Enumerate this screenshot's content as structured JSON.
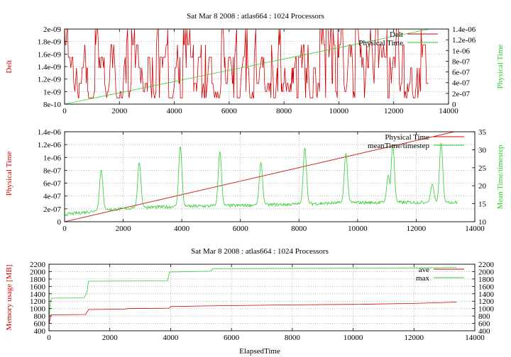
{
  "colors": {
    "red": "#d00000",
    "green": "#33cc33",
    "grid": "#a0a0a0",
    "frame": "#000000"
  },
  "chart_data": [
    {
      "type": "line",
      "title": "Sat Mar 8 2008 : atlas664 : 1024 Processors",
      "xlabel": "",
      "ylabel": "Delt",
      "y2label": "Physical Time",
      "xlim": [
        0,
        14000
      ],
      "ylim": [
        8e-10,
        2e-09
      ],
      "y2lim": [
        0,
        1.4e-06
      ],
      "xticks": [
        "0",
        "2000",
        "4000",
        "6000",
        "8000",
        "10000",
        "12000",
        "14000"
      ],
      "yticks": [
        "8e-10",
        "1e-09",
        "1.2e-09",
        "1.4e-09",
        "1.6e-09",
        "1.8e-09",
        "2e-09"
      ],
      "y2ticks": [
        "0",
        "2e-07",
        "4e-07",
        "6e-07",
        "8e-07",
        "1e-06",
        "1.2e-06",
        "1.4e-06"
      ],
      "legend_position": "top-right",
      "grid": true,
      "series": [
        {
          "name": "Delt",
          "axis": "y1",
          "color": "#d00000",
          "pattern": "noisy_step",
          "x_range": [
            0,
            13300
          ],
          "levels": [
            9e-10,
            1e-09,
            1.13e-09,
            1.38e-09,
            1.55e-09,
            1.75e-09,
            2e-09
          ]
        },
        {
          "name": "Physical Time",
          "axis": "y2",
          "color": "#33cc33",
          "pattern": "linear",
          "x": [
            0,
            13300
          ],
          "y": [
            0,
            1.4e-06
          ]
        }
      ]
    },
    {
      "type": "line",
      "title": "",
      "xlabel": "",
      "ylabel": "Physical Time",
      "y2label": "Mean Time/timestep",
      "xlim": [
        0,
        14000
      ],
      "ylim": [
        0,
        1.4e-06
      ],
      "y2lim": [
        10,
        35
      ],
      "xticks": [
        "0",
        "2000",
        "4000",
        "6000",
        "8000",
        "10000",
        "12000",
        "14000"
      ],
      "yticks": [
        "0",
        "2e-07",
        "4e-07",
        "6e-07",
        "8e-07",
        "1e-06",
        "1.2e-06",
        "1.4e-06"
      ],
      "y2ticks": [
        "10",
        "15",
        "20",
        "25",
        "30",
        "35"
      ],
      "legend_position": "top-right",
      "grid": true,
      "series": [
        {
          "name": "Physical Time",
          "axis": "y1",
          "color": "#d00000",
          "pattern": "linear",
          "x": [
            0,
            13300
          ],
          "y": [
            0,
            1.4e-06
          ]
        },
        {
          "name": "meanTime/timestep",
          "axis": "y2",
          "color": "#33cc33",
          "pattern": "baseline_with_spikes",
          "x_range": [
            0,
            13400
          ],
          "baseline": [
            [
              0,
              12.0
            ],
            [
              1300,
              13.2
            ],
            [
              2700,
              14.0
            ],
            [
              5800,
              14.5
            ],
            [
              8500,
              15.0
            ],
            [
              9700,
              15.3
            ],
            [
              13400,
              15.4
            ]
          ],
          "spikes": [
            [
              1250,
              24.5
            ],
            [
              2550,
              26.5
            ],
            [
              3950,
              31
            ],
            [
              5300,
              29.5
            ],
            [
              6700,
              26.5
            ],
            [
              8200,
              30.5
            ],
            [
              9600,
              29.0
            ],
            [
              11050,
              23.0
            ],
            [
              11200,
              31.5
            ],
            [
              12550,
              20.5
            ],
            [
              12850,
              32.0
            ]
          ]
        }
      ]
    },
    {
      "type": "line",
      "title": "Sat Mar 8 2008 : atlas664 : 1024 Processors",
      "xlabel": "ElapsedTime",
      "ylabel": "Memory usage [MB]",
      "y2label": "",
      "xlim": [
        0,
        14000
      ],
      "ylim": [
        400,
        2200
      ],
      "y2lim": [
        400,
        2200
      ],
      "xticks": [
        "0",
        "2000",
        "4000",
        "6000",
        "8000",
        "10000",
        "12000",
        "14000"
      ],
      "yticks": [
        "400",
        "600",
        "800",
        "1000",
        "1200",
        "1400",
        "1600",
        "1800",
        "2000",
        "2200"
      ],
      "y2ticks": [
        "400",
        "600",
        "800",
        "1000",
        "1200",
        "1400",
        "1600",
        "1800",
        "2000",
        "2200"
      ],
      "legend_position": "top-right",
      "grid": true,
      "series": [
        {
          "name": "ave",
          "axis": "y1",
          "color": "#d00000",
          "x": [
            0,
            30,
            60,
            1200,
            1300,
            2500,
            2600,
            3950,
            4000,
            5000,
            8000,
            10000,
            12000,
            13400
          ],
          "y": [
            600,
            680,
            830,
            840,
            975,
            985,
            1000,
            1010,
            1055,
            1070,
            1100,
            1115,
            1140,
            1175
          ]
        },
        {
          "name": "max",
          "axis": "y1",
          "color": "#33cc33",
          "x": [
            0,
            40,
            80,
            1150,
            1250,
            1300,
            3900,
            3960,
            5300,
            5400,
            10000,
            12000,
            13400
          ],
          "y": [
            620,
            1150,
            1280,
            1290,
            1450,
            1740,
            1750,
            1990,
            2010,
            2080,
            2090,
            2100,
            2110
          ]
        }
      ]
    }
  ]
}
